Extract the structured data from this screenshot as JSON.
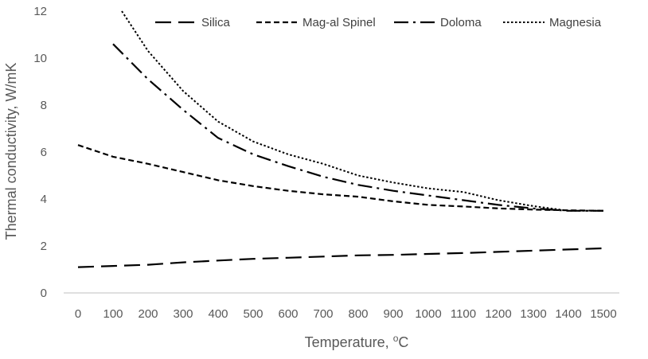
{
  "chart_data": {
    "type": "line",
    "xlabel": "Temperature, ",
    "xlabel_unit": "C",
    "xlabel_superscript": "o",
    "ylabel": "Thermal conductivity, W/mK",
    "xlim": [
      0,
      1500
    ],
    "ylim": [
      0,
      12
    ],
    "x_ticks": [
      "0",
      "100",
      "200",
      "300",
      "400",
      "500",
      "600",
      "700",
      "800",
      "900",
      "1000",
      "1100",
      "1200",
      "1300",
      "1400",
      "1500"
    ],
    "y_ticks": [
      "0",
      "2",
      "4",
      "6",
      "8",
      "10",
      "12"
    ],
    "grid": false,
    "legend_position": "top",
    "series": [
      {
        "name": "Silica",
        "style": "long-dash",
        "color": "#000000",
        "x": [
          0,
          100,
          200,
          300,
          400,
          500,
          600,
          700,
          800,
          900,
          1000,
          1100,
          1200,
          1300,
          1400,
          1500
        ],
        "values": [
          1.1,
          1.15,
          1.2,
          1.3,
          1.38,
          1.45,
          1.5,
          1.55,
          1.6,
          1.62,
          1.66,
          1.7,
          1.75,
          1.8,
          1.85,
          1.9
        ]
      },
      {
        "name": "Mag-al Spinel",
        "style": "short-dash",
        "color": "#000000",
        "x": [
          0,
          100,
          200,
          300,
          400,
          500,
          600,
          700,
          800,
          900,
          1000,
          1100,
          1200,
          1300,
          1400,
          1500
        ],
        "values": [
          6.3,
          5.8,
          5.5,
          5.15,
          4.8,
          4.55,
          4.35,
          4.2,
          4.1,
          3.9,
          3.75,
          3.68,
          3.6,
          3.55,
          3.52,
          3.5
        ]
      },
      {
        "name": "Doloma",
        "style": "dash-dot",
        "color": "#000000",
        "x": [
          100,
          200,
          300,
          400,
          500,
          600,
          700,
          800,
          900,
          1000,
          1100,
          1200,
          1300,
          1400,
          1500
        ],
        "values": [
          10.6,
          9.1,
          7.8,
          6.6,
          5.9,
          5.4,
          4.95,
          4.6,
          4.35,
          4.15,
          3.95,
          3.75,
          3.6,
          3.5,
          3.5
        ]
      },
      {
        "name": "Magnesia",
        "style": "dotted",
        "color": "#000000",
        "x": [
          125,
          200,
          300,
          400,
          500,
          600,
          700,
          800,
          900,
          1000,
          1100,
          1200,
          1300,
          1400,
          1500
        ],
        "values": [
          12.0,
          10.3,
          8.6,
          7.3,
          6.45,
          5.9,
          5.5,
          5.0,
          4.7,
          4.45,
          4.3,
          3.95,
          3.7,
          3.5,
          3.5
        ]
      }
    ]
  }
}
